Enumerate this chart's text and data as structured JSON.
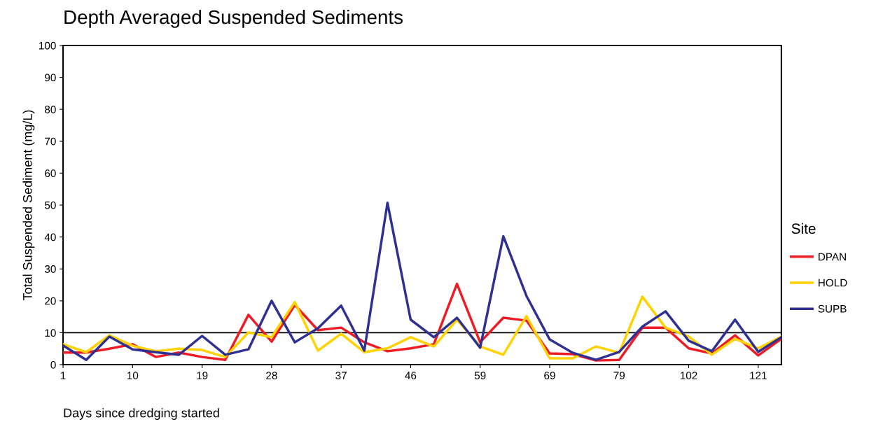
{
  "chart_data": {
    "type": "line",
    "title": "Depth Averaged Suspended Sediments",
    "xlabel": "Days since dredging started",
    "ylabel": "Total Suspended Sediment (mg/L)",
    "legend_title": "Site",
    "categories": [
      "1",
      null,
      null,
      "10",
      null,
      null,
      "19",
      null,
      null,
      "28",
      null,
      null,
      "37",
      null,
      null,
      "46",
      null,
      null,
      "59",
      null,
      null,
      "69",
      null,
      null,
      "79",
      null,
      null,
      "102",
      null,
      null,
      "121",
      null
    ],
    "series": [
      {
        "name": "DPAN",
        "color": "#ed1c24",
        "values": [
          3.8,
          3.8,
          5.0,
          6.4,
          2.4,
          3.8,
          2.4,
          1.5,
          15.6,
          7.2,
          18.7,
          10.8,
          11.6,
          7.0,
          4.2,
          5.1,
          6.4,
          25.3,
          7.0,
          14.7,
          13.8,
          3.5,
          3.3,
          1.3,
          1.5,
          11.6,
          11.6,
          5.1,
          3.5,
          9.2,
          2.9,
          8.1
        ]
      },
      {
        "name": "HOLD",
        "color": "#ffd200",
        "values": [
          6.4,
          3.9,
          9.2,
          5.9,
          4.2,
          5.0,
          4.6,
          2.4,
          10.1,
          8.6,
          19.6,
          4.4,
          9.7,
          3.9,
          5.1,
          8.6,
          5.7,
          14.1,
          5.7,
          3.1,
          15.2,
          2.0,
          2.0,
          5.7,
          3.7,
          21.3,
          11.6,
          8.8,
          3.1,
          8.1,
          5.1,
          8.8
        ]
      },
      {
        "name": "SUPB",
        "color": "#2e3192",
        "values": [
          6.0,
          1.5,
          8.8,
          4.8,
          3.9,
          3.1,
          9.0,
          3.1,
          4.8,
          20.0,
          7.0,
          11.4,
          18.5,
          4.4,
          50.7,
          14.1,
          8.6,
          14.7,
          5.3,
          40.2,
          21.5,
          7.9,
          3.7,
          1.5,
          4.0,
          11.9,
          16.7,
          7.5,
          4.2,
          14.1,
          4.0,
          8.6
        ]
      }
    ],
    "ylim": [
      0,
      100
    ],
    "yticks": [
      0,
      10,
      20,
      30,
      40,
      50,
      60,
      70,
      80,
      90,
      100
    ],
    "ref_lines": [
      {
        "axis": "y",
        "value": 10,
        "color": "#000000",
        "line_style": "solid"
      }
    ],
    "grid": false,
    "legend": "right",
    "marker": "none",
    "line_style": "solid"
  }
}
